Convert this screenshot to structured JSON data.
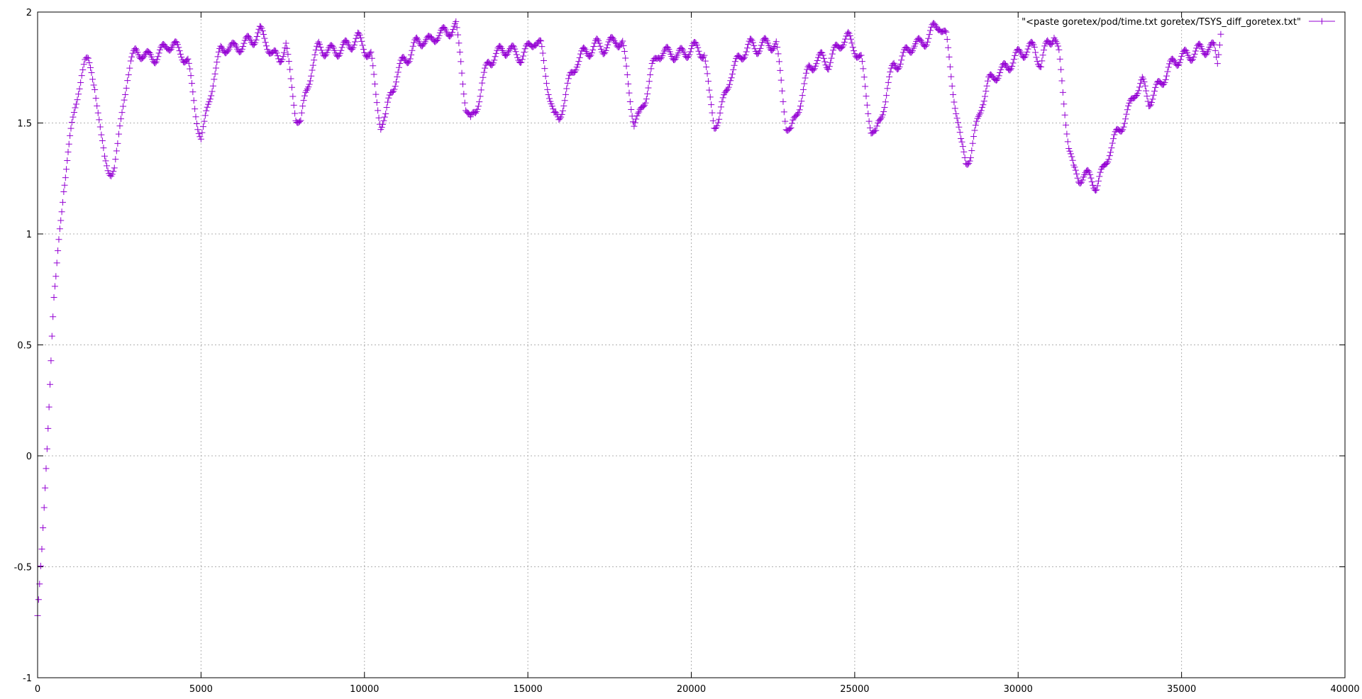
{
  "chart_data": {
    "type": "scatter",
    "title": "",
    "xlabel": "",
    "ylabel": "",
    "xlim": [
      0,
      40000
    ],
    "ylim": [
      -1,
      2
    ],
    "x_ticks": [
      "0",
      "5000",
      "10000",
      "15000",
      "20000",
      "25000",
      "30000",
      "35000",
      "40000"
    ],
    "y_ticks": [
      "-1",
      "-0.5",
      "0",
      "0.5",
      "1",
      "1.5",
      "2"
    ],
    "grid": true,
    "legend_position": "top-right",
    "marker": "plus",
    "series": [
      {
        "name": "\"<paste goretex/pod/time.txt goretex/TSYS_diff_goretex.txt\"",
        "color": "#9400d3",
        "points": [
          [
            0,
            -0.72
          ],
          [
            60,
            -0.6
          ],
          [
            130,
            -0.45
          ],
          [
            200,
            -0.25
          ],
          [
            260,
            -0.05
          ],
          [
            320,
            0.15
          ],
          [
            380,
            0.35
          ],
          [
            440,
            0.55
          ],
          [
            500,
            0.7
          ],
          [
            560,
            0.78
          ],
          [
            620,
            0.9
          ],
          [
            680,
            1.02
          ],
          [
            740,
            1.12
          ],
          [
            800,
            1.22
          ],
          [
            880,
            1.3
          ],
          [
            960,
            1.38
          ],
          [
            1050,
            1.48
          ],
          [
            1150,
            1.58
          ],
          [
            1250,
            1.66
          ],
          [
            1350,
            1.72
          ],
          [
            1450,
            1.76
          ],
          [
            1550,
            1.77
          ],
          [
            1650,
            1.74
          ],
          [
            1750,
            1.68
          ],
          [
            1850,
            1.55
          ],
          [
            1950,
            1.42
          ],
          [
            2050,
            1.33
          ],
          [
            2150,
            1.3
          ],
          [
            2250,
            1.29
          ],
          [
            2350,
            1.3
          ],
          [
            2450,
            1.38
          ],
          [
            2550,
            1.5
          ],
          [
            2650,
            1.62
          ],
          [
            2750,
            1.72
          ],
          [
            2850,
            1.78
          ],
          [
            3000,
            1.81
          ],
          [
            3200,
            1.82
          ],
          [
            3400,
            1.79
          ],
          [
            3600,
            1.8
          ],
          [
            3800,
            1.82
          ],
          [
            4000,
            1.86
          ],
          [
            4200,
            1.84
          ],
          [
            4400,
            1.82
          ],
          [
            4600,
            1.77
          ],
          [
            4750,
            1.63
          ],
          [
            4900,
            1.5
          ],
          [
            5000,
            1.43
          ],
          [
            5100,
            1.48
          ],
          [
            5250,
            1.6
          ],
          [
            5400,
            1.72
          ],
          [
            5600,
            1.82
          ],
          [
            5800,
            1.85
          ],
          [
            6000,
            1.83
          ],
          [
            6200,
            1.85
          ],
          [
            6400,
            1.86
          ],
          [
            6600,
            1.88
          ],
          [
            6800,
            1.91
          ],
          [
            7000,
            1.87
          ],
          [
            7200,
            1.8
          ],
          [
            7400,
            1.79
          ],
          [
            7600,
            1.85
          ],
          [
            7750,
            1.68
          ],
          [
            7900,
            1.54
          ],
          [
            8050,
            1.5
          ],
          [
            8200,
            1.62
          ],
          [
            8400,
            1.76
          ],
          [
            8600,
            1.84
          ],
          [
            8800,
            1.83
          ],
          [
            9000,
            1.82
          ],
          [
            9200,
            1.83
          ],
          [
            9400,
            1.84
          ],
          [
            9600,
            1.86
          ],
          [
            9800,
            1.88
          ],
          [
            10000,
            1.84
          ],
          [
            10200,
            1.8
          ],
          [
            10350,
            1.62
          ],
          [
            10500,
            1.5
          ],
          [
            10650,
            1.52
          ],
          [
            10800,
            1.63
          ],
          [
            11000,
            1.72
          ],
          [
            11200,
            1.78
          ],
          [
            11400,
            1.81
          ],
          [
            11600,
            1.86
          ],
          [
            11800,
            1.88
          ],
          [
            12000,
            1.86
          ],
          [
            12200,
            1.9
          ],
          [
            12400,
            1.9
          ],
          [
            12600,
            1.92
          ],
          [
            12800,
            1.93
          ],
          [
            12950,
            1.78
          ],
          [
            13100,
            1.58
          ],
          [
            13250,
            1.5
          ],
          [
            13400,
            1.55
          ],
          [
            13600,
            1.68
          ],
          [
            13800,
            1.77
          ],
          [
            14000,
            1.81
          ],
          [
            14200,
            1.82
          ],
          [
            14400,
            1.84
          ],
          [
            14600,
            1.81
          ],
          [
            14800,
            1.8
          ],
          [
            15000,
            1.83
          ],
          [
            15200,
            1.88
          ],
          [
            15400,
            1.84
          ],
          [
            15600,
            1.68
          ],
          [
            15800,
            1.52
          ],
          [
            15950,
            1.52
          ],
          [
            16100,
            1.6
          ],
          [
            16300,
            1.7
          ],
          [
            16500,
            1.78
          ],
          [
            16700,
            1.81
          ],
          [
            16900,
            1.83
          ],
          [
            17100,
            1.85
          ],
          [
            17300,
            1.84
          ],
          [
            17500,
            1.85
          ],
          [
            17700,
            1.88
          ],
          [
            17900,
            1.85
          ],
          [
            18100,
            1.65
          ],
          [
            18250,
            1.5
          ],
          [
            18400,
            1.52
          ],
          [
            18600,
            1.62
          ],
          [
            18800,
            1.74
          ],
          [
            19000,
            1.82
          ],
          [
            19200,
            1.81
          ],
          [
            19400,
            1.82
          ],
          [
            19600,
            1.8
          ],
          [
            19800,
            1.82
          ],
          [
            20000,
            1.83
          ],
          [
            20200,
            1.84
          ],
          [
            20400,
            1.81
          ],
          [
            20550,
            1.62
          ],
          [
            20700,
            1.5
          ],
          [
            20850,
            1.52
          ],
          [
            21000,
            1.6
          ],
          [
            21200,
            1.72
          ],
          [
            21400,
            1.77
          ],
          [
            21600,
            1.82
          ],
          [
            21800,
            1.85
          ],
          [
            22000,
            1.84
          ],
          [
            22200,
            1.85
          ],
          [
            22400,
            1.86
          ],
          [
            22600,
            1.85
          ],
          [
            22750,
            1.68
          ],
          [
            22900,
            1.5
          ],
          [
            23050,
            1.46
          ],
          [
            23200,
            1.52
          ],
          [
            23400,
            1.64
          ],
          [
            23600,
            1.74
          ],
          [
            23800,
            1.78
          ],
          [
            24000,
            1.79
          ],
          [
            24200,
            1.77
          ],
          [
            24400,
            1.82
          ],
          [
            24600,
            1.87
          ],
          [
            24800,
            1.88
          ],
          [
            25000,
            1.84
          ],
          [
            25200,
            1.78
          ],
          [
            25350,
            1.62
          ],
          [
            25500,
            1.48
          ],
          [
            25650,
            1.44
          ],
          [
            25800,
            1.52
          ],
          [
            26000,
            1.66
          ],
          [
            26200,
            1.76
          ],
          [
            26400,
            1.78
          ],
          [
            26600,
            1.82
          ],
          [
            26800,
            1.86
          ],
          [
            27000,
            1.85
          ],
          [
            27200,
            1.88
          ],
          [
            27400,
            1.92
          ],
          [
            27600,
            1.95
          ],
          [
            27800,
            1.88
          ],
          [
            27950,
            1.72
          ],
          [
            28100,
            1.56
          ],
          [
            28250,
            1.4
          ],
          [
            28400,
            1.33
          ],
          [
            28550,
            1.36
          ],
          [
            28700,
            1.46
          ],
          [
            28900,
            1.6
          ],
          [
            29100,
            1.68
          ],
          [
            29300,
            1.72
          ],
          [
            29500,
            1.73
          ],
          [
            29700,
            1.76
          ],
          [
            29900,
            1.79
          ],
          [
            30100,
            1.82
          ],
          [
            30300,
            1.83
          ],
          [
            30500,
            1.84
          ],
          [
            30700,
            1.76
          ],
          [
            30900,
            1.86
          ],
          [
            31100,
            1.9
          ],
          [
            31250,
            1.8
          ],
          [
            31400,
            1.6
          ],
          [
            31550,
            1.4
          ],
          [
            31700,
            1.28
          ],
          [
            31850,
            1.25
          ],
          [
            32000,
            1.27
          ],
          [
            32200,
            1.25
          ],
          [
            32400,
            1.22
          ],
          [
            32600,
            1.28
          ],
          [
            32800,
            1.38
          ],
          [
            33000,
            1.44
          ],
          [
            33200,
            1.5
          ],
          [
            33400,
            1.56
          ],
          [
            33600,
            1.65
          ],
          [
            33800,
            1.68
          ],
          [
            34000,
            1.6
          ],
          [
            34200,
            1.64
          ],
          [
            34400,
            1.69
          ],
          [
            34600,
            1.74
          ],
          [
            34800,
            1.78
          ],
          [
            35000,
            1.8
          ],
          [
            35200,
            1.8
          ],
          [
            35400,
            1.82
          ],
          [
            35600,
            1.83
          ],
          [
            35800,
            1.84
          ],
          [
            36000,
            1.83
          ],
          [
            36100,
            1.78
          ],
          [
            36200,
            1.93
          ]
        ]
      }
    ]
  }
}
